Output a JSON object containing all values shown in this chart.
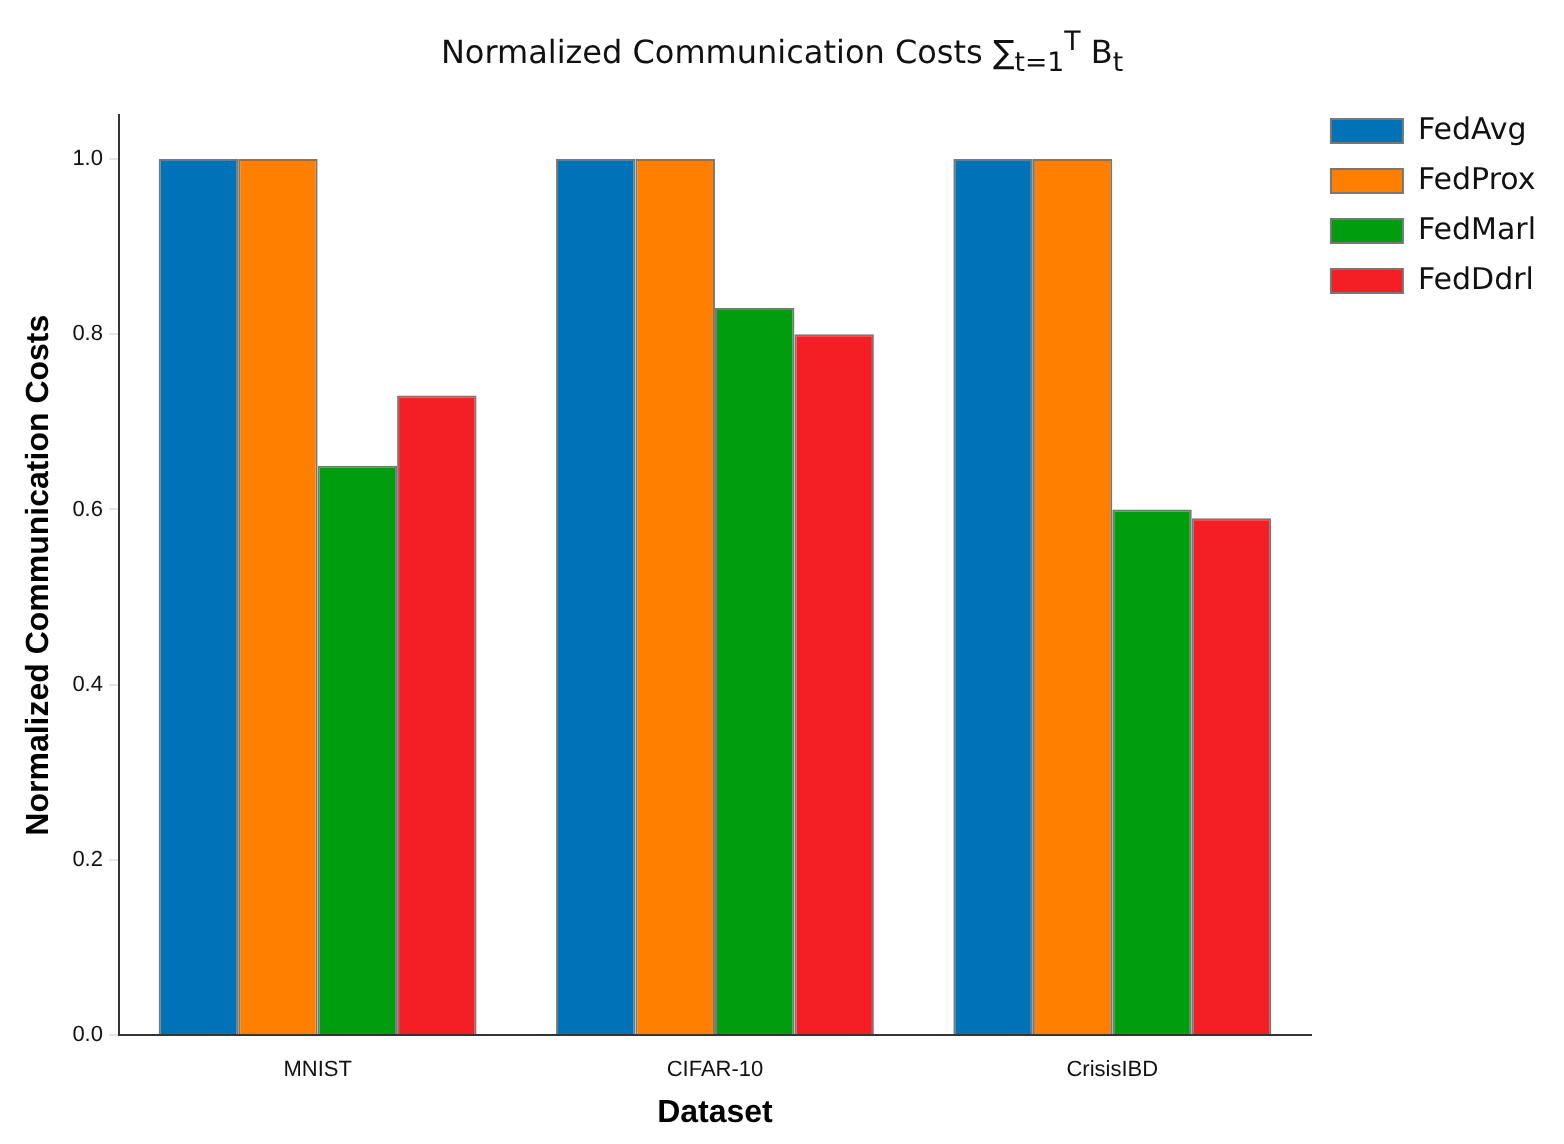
{
  "chart_data": {
    "type": "bar",
    "title": "Normalized Communication Costs ∑$_{t=1}$$^{T}$ B$_{t}$",
    "xlabel": "Dataset",
    "ylabel": "Normalized Communication Costs",
    "categories": [
      "MNIST",
      "CIFAR-10",
      "CrisisIBD"
    ],
    "series": [
      {
        "name": "FedAvg",
        "color": "#0072b8",
        "values": [
          1.0,
          1.0,
          1.0
        ]
      },
      {
        "name": "FedProx",
        "color": "#ff7f00",
        "values": [
          1.0,
          1.0,
          1.0
        ]
      },
      {
        "name": "FedMarl",
        "color": "#009e0e",
        "values": [
          0.65,
          0.83,
          0.6
        ]
      },
      {
        "name": "FedDdrl",
        "color": "#f41f25",
        "values": [
          0.73,
          0.8,
          0.59
        ]
      }
    ],
    "ylim": [
      0,
      1.05
    ],
    "yticks": [
      {
        "value": 0,
        "label": "0.0"
      },
      {
        "value": 0.2,
        "label": "0.2"
      },
      {
        "value": 0.4,
        "label": "0.4"
      },
      {
        "value": 0.6,
        "label": "0.6"
      },
      {
        "value": 0.8,
        "label": "0.8"
      },
      {
        "value": 1.0,
        "label": "1.0"
      }
    ],
    "grid": false,
    "legend": "top right"
  }
}
